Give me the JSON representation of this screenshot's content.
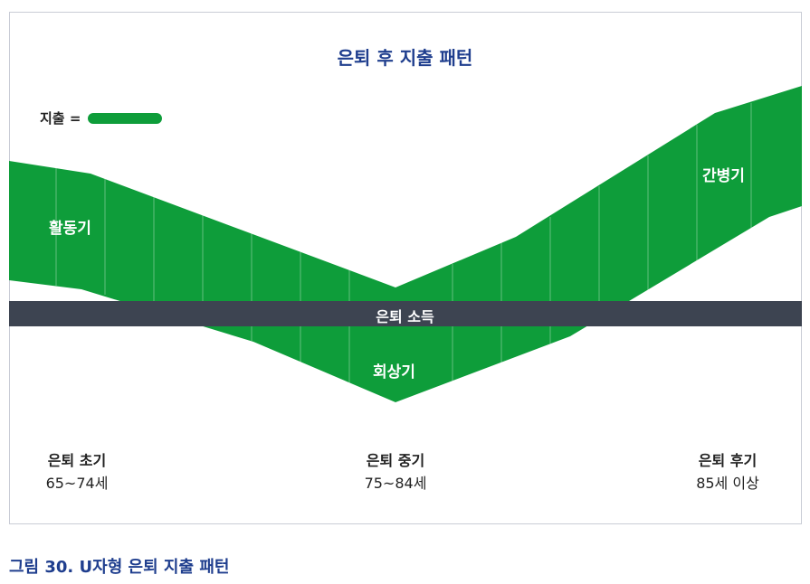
{
  "title": "은퇴 후 지출 패턴",
  "legend": {
    "label": "지출 ="
  },
  "colors": {
    "band": "#0e9d3a",
    "bar": "#3d4451",
    "title": "#1f3e8e"
  },
  "phases": {
    "active": "활동기",
    "recall": "회상기",
    "care": "간병기"
  },
  "income_bar": {
    "label": "은퇴 소득"
  },
  "stages": [
    {
      "name": "은퇴 초기",
      "age": "65~74세"
    },
    {
      "name": "은퇴 중기",
      "age": "75~84세"
    },
    {
      "name": "은퇴 후기",
      "age": "85세 이상"
    }
  ],
  "caption": "그림 30. U자형 은퇴 지출 패턴"
}
